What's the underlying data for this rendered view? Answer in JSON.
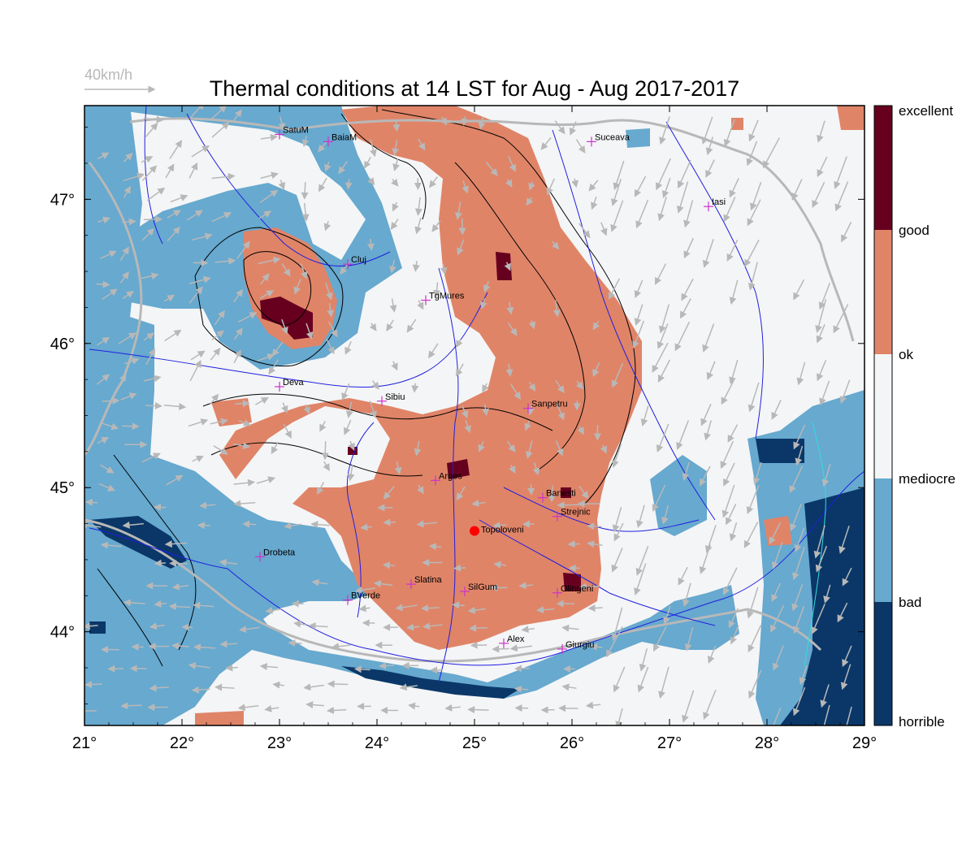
{
  "title": "Thermal conditions at 14 LST for Aug - Aug  2017-2017",
  "wind_reference": {
    "label": "40km/h"
  },
  "axes": {
    "x_ticks": [
      "21°",
      "22°",
      "23°",
      "24°",
      "25°",
      "26°",
      "27°",
      "28°",
      "29°"
    ],
    "y_ticks": [
      "47°",
      "46°",
      "45°",
      "44°"
    ],
    "lon_range": [
      21,
      29
    ],
    "lat_range": [
      43.35,
      47.65
    ]
  },
  "legend": {
    "classes": [
      {
        "label": "excellent",
        "color": "#67001f"
      },
      {
        "label": "good",
        "color": "#e08468"
      },
      {
        "label": "ok",
        "color": "#f4f5f6"
      },
      {
        "label": "mediocre",
        "color": "#67a9cf"
      },
      {
        "label": "bad",
        "color": "#0a3768"
      },
      {
        "label": "horrible",
        "color": "#0a3768"
      }
    ]
  },
  "colors": {
    "excellent": "#67001f",
    "good": "#e08468",
    "ok": "#f4f5f6",
    "mediocre": "#67a9cf",
    "bad": "#0a3768",
    "river": "#1f1fe0",
    "border": "#b8b8b8",
    "contour": "#000000",
    "marker": "#cc33cc",
    "highlight": "#ff0000",
    "coast": "#33dddd"
  },
  "cities": [
    {
      "name": "SatuM",
      "lon": 23.0,
      "lat": 47.45
    },
    {
      "name": "BaiaM",
      "lon": 23.5,
      "lat": 47.4
    },
    {
      "name": "Suceava",
      "lon": 26.2,
      "lat": 47.4
    },
    {
      "name": "Iasi",
      "lon": 27.4,
      "lat": 46.95
    },
    {
      "name": "Cluj",
      "lon": 23.7,
      "lat": 46.55
    },
    {
      "name": "TgMures",
      "lon": 24.5,
      "lat": 46.3
    },
    {
      "name": "Deva",
      "lon": 23.0,
      "lat": 45.7
    },
    {
      "name": "Sibiu",
      "lon": 24.05,
      "lat": 45.6
    },
    {
      "name": "Sanpetru",
      "lon": 25.55,
      "lat": 45.55
    },
    {
      "name": "Arges",
      "lon": 24.6,
      "lat": 45.05
    },
    {
      "name": "Banesti",
      "lon": 25.7,
      "lat": 44.93
    },
    {
      "name": "Strejnic",
      "lon": 25.85,
      "lat": 44.8
    },
    {
      "name": "Drobeta",
      "lon": 22.8,
      "lat": 44.52
    },
    {
      "name": "Slatina",
      "lon": 24.35,
      "lat": 44.33
    },
    {
      "name": "SilGum",
      "lon": 24.9,
      "lat": 44.28
    },
    {
      "name": "Olingeni",
      "lon": 25.85,
      "lat": 44.27
    },
    {
      "name": "BVerde",
      "lon": 23.7,
      "lat": 44.22
    },
    {
      "name": "Alex",
      "lon": 25.3,
      "lat": 43.92
    },
    {
      "name": "Giurgiu",
      "lon": 25.9,
      "lat": 43.88
    }
  ],
  "highlight_site": {
    "name": "Topoloveni",
    "lon": 25.0,
    "lat": 44.7
  }
}
